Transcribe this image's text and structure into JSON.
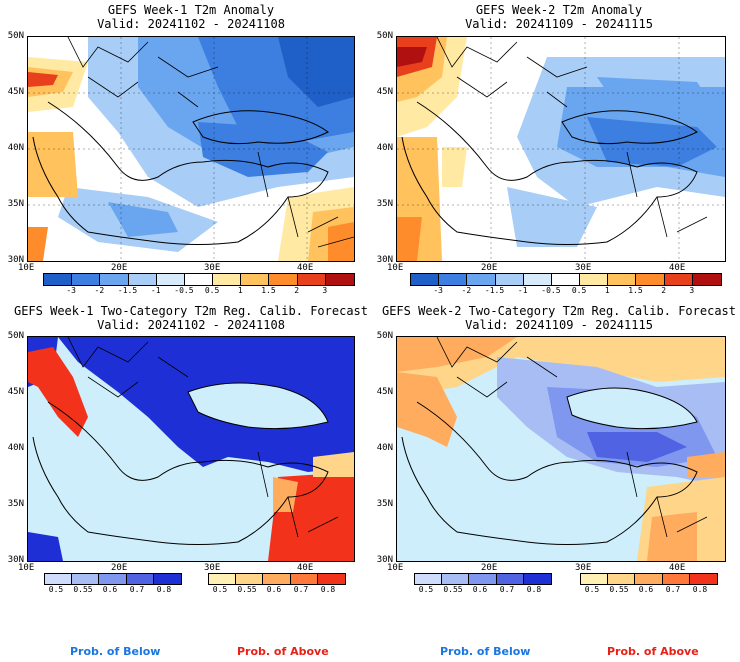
{
  "panels": [
    {
      "title": "GEFS Week-1 T2m Anomaly",
      "valid": "Valid: 20241102 - 20241108"
    },
    {
      "title": "GEFS Week-2 T2m Anomaly",
      "valid": "Valid: 20241109 - 20241115"
    },
    {
      "title": "GEFS Week-1 Two-Category T2m Reg. Calib. Forecast",
      "valid": "Valid: 20241102 - 20241108"
    },
    {
      "title": "GEFS Week-2 Two-Category T2m Reg. Calib. Forecast",
      "valid": "Valid: 20241109 - 20241115"
    }
  ],
  "axes": {
    "lat_labels": [
      "50N",
      "45N",
      "40N",
      "35N",
      "30N"
    ],
    "lon_labels": [
      "10E",
      "20E",
      "30E",
      "40E"
    ]
  },
  "anomaly_scale": {
    "labels": [
      "-3",
      "-2",
      "-1.5",
      "-1",
      "-0.5",
      "0.5",
      "1",
      "1.5",
      "2",
      "3"
    ],
    "colors": [
      "#1e5fc8",
      "#3c7fe0",
      "#6aa6ef",
      "#a8cdf6",
      "#d8ebfb",
      "#ffffff",
      "#ffe9a3",
      "#ffc25c",
      "#ff8c2a",
      "#e8401c",
      "#b01010"
    ]
  },
  "prob_scale": {
    "below_labels": [
      "0.5",
      "0.55",
      "0.6",
      "0.7",
      "0.8"
    ],
    "below_colors": [
      "#d0dcfb",
      "#a9bdf5",
      "#7f97ee",
      "#4f63e3",
      "#1f2fd6"
    ],
    "above_labels": [
      "0.5",
      "0.55",
      "0.6",
      "0.7",
      "0.8"
    ],
    "above_colors": [
      "#fff0b4",
      "#ffd58a",
      "#ffac5e",
      "#ff7a3a",
      "#f2321a"
    ]
  },
  "legend": {
    "below": "Prob. of Below",
    "above": "Prob. of Above"
  },
  "colors": {
    "sea_light": "#cdeefa",
    "below_text": "#1a76e0",
    "above_text": "#e82016"
  }
}
